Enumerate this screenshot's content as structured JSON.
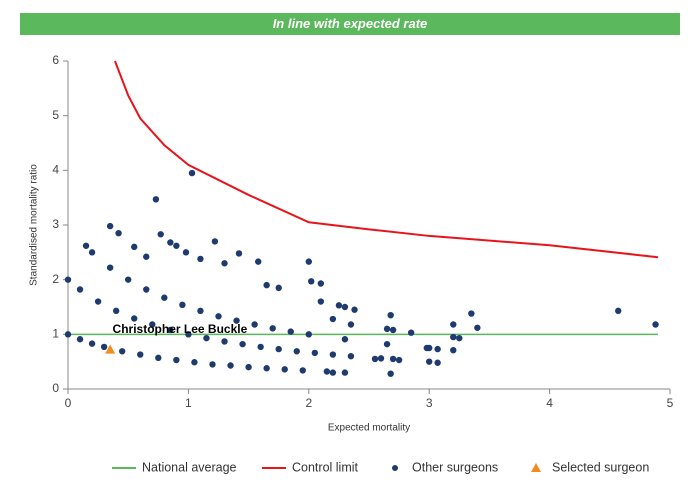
{
  "chart_data": {
    "type": "scatter",
    "title": "In line with expected rate",
    "title_color": "#5cb85c",
    "x_label": "Expected mortality",
    "y_label": "Standardised mortality ratio",
    "xlim": [
      0,
      5
    ],
    "ylim": [
      0,
      6
    ],
    "xticks": [
      0,
      1,
      2,
      3,
      4,
      5
    ],
    "yticks": [
      0,
      1,
      2,
      3,
      4,
      5,
      6
    ],
    "annotation": {
      "text": "Christopher Lee Buckle",
      "x": 0.37,
      "y": 1.08
    },
    "series": [
      {
        "name": "National average",
        "type": "line",
        "color": "#5cb85c",
        "x": [
          0,
          4.9
        ],
        "values": [
          1,
          1
        ]
      },
      {
        "name": "Control limit",
        "type": "line",
        "color": "#e8141b",
        "x": [
          0.39,
          0.5,
          0.6,
          0.8,
          1.0,
          1.5,
          2.0,
          2.5,
          3.0,
          4.0,
          4.9
        ],
        "values": [
          6.0,
          5.37,
          4.95,
          4.46,
          4.1,
          3.55,
          3.05,
          2.92,
          2.8,
          2.63,
          2.41
        ]
      },
      {
        "name": "Other surgeons",
        "type": "scatter",
        "marker": "circle",
        "color": "#1f3a6e",
        "x": [
          0,
          0.1,
          0.2,
          0.3,
          0.45,
          0.6,
          0.75,
          0.9,
          1.05,
          1.2,
          1.35,
          1.5,
          1.65,
          1.8,
          1.95,
          2.15,
          2.3,
          0,
          0.1,
          0.25,
          0.4,
          0.55,
          0.7,
          0.85,
          1.0,
          1.15,
          1.3,
          1.45,
          1.6,
          1.75,
          1.9,
          2.05,
          2.2,
          2.35,
          2.6,
          2.75,
          0.2,
          0.35,
          0.5,
          0.65,
          0.8,
          0.95,
          1.1,
          1.25,
          1.4,
          1.55,
          1.7,
          1.85,
          2.0,
          2.3,
          2.65,
          3.0,
          3.2,
          0.15,
          0.35,
          0.42,
          0.55,
          0.65,
          0.73,
          0.77,
          0.85,
          0.9,
          0.98,
          1.03,
          1.1,
          1.22,
          1.3,
          1.42,
          1.58,
          1.65,
          1.75,
          2.0,
          2.02,
          2.1,
          2.25,
          2.3,
          2.38,
          2.1,
          2.35,
          2.68,
          2.65,
          2.7,
          2.85,
          3.2,
          3.35,
          3.4,
          3.2,
          3.25,
          2.98,
          3.07,
          3.0,
          3.07,
          2.68,
          2.2,
          4.57,
          4.88,
          2.55,
          2.7,
          2.2
        ],
        "values": [
          1,
          0.91,
          0.83,
          0.77,
          0.69,
          0.63,
          0.57,
          0.53,
          0.49,
          0.45,
          0.43,
          0.4,
          0.38,
          0.36,
          0.34,
          0.32,
          0.3,
          2,
          1.82,
          1.6,
          1.43,
          1.29,
          1.18,
          1.08,
          1.0,
          0.93,
          0.87,
          0.82,
          0.77,
          0.73,
          0.69,
          0.66,
          0.63,
          0.6,
          0.56,
          0.53,
          2.5,
          2.22,
          2.0,
          1.82,
          1.67,
          1.54,
          1.43,
          1.33,
          1.25,
          1.18,
          1.11,
          1.05,
          1.0,
          0.91,
          0.82,
          0.75,
          0.71,
          2.62,
          2.98,
          2.85,
          2.6,
          2.42,
          3.47,
          2.83,
          2.68,
          2.62,
          2.5,
          3.95,
          2.38,
          2.7,
          2.3,
          2.48,
          2.33,
          1.9,
          1.85,
          2.33,
          1.97,
          1.93,
          1.53,
          1.5,
          1.45,
          1.6,
          1.18,
          1.35,
          1.1,
          1.08,
          1.03,
          1.18,
          1.38,
          1.12,
          0.95,
          0.93,
          0.75,
          0.73,
          0.5,
          0.48,
          0.28,
          0.3,
          1.43,
          1.18,
          0.55,
          0.55,
          1.28
        ]
      },
      {
        "name": "Selected surgeon",
        "type": "scatter",
        "marker": "triangle",
        "color": "#f28c1e",
        "x": [
          0.35
        ],
        "values": [
          0.72
        ]
      }
    ]
  }
}
